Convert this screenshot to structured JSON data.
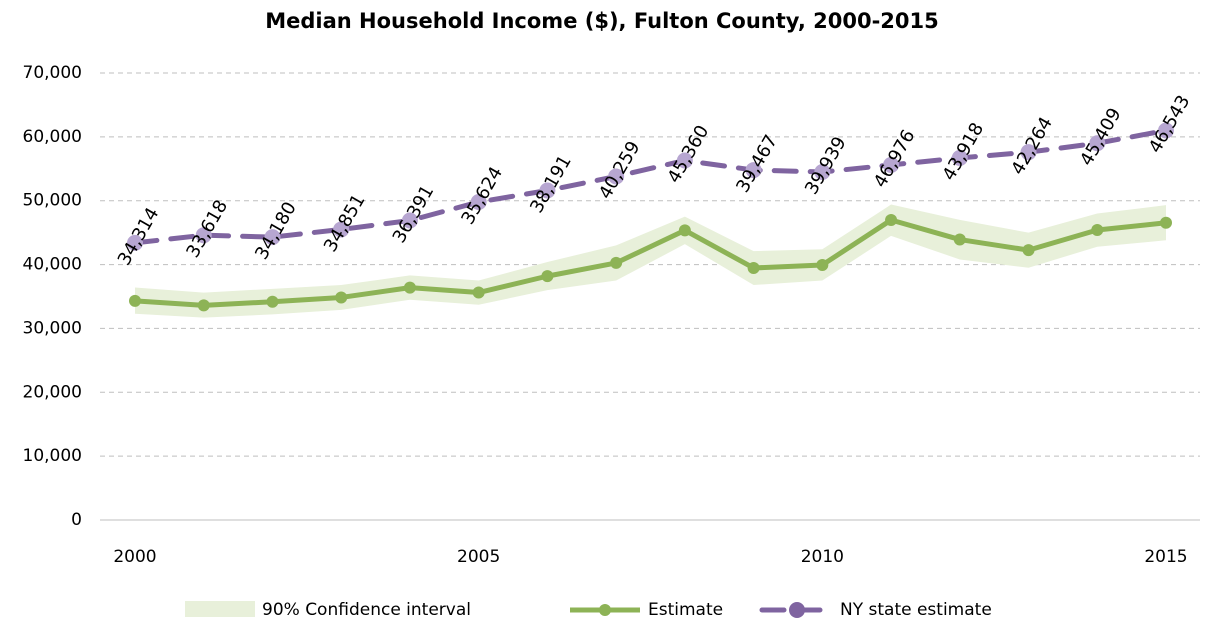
{
  "chart_data": {
    "type": "line",
    "title": "Median Household Income ($), Fulton County, 2000-2015",
    "x": [
      2000,
      2001,
      2002,
      2003,
      2004,
      2005,
      2006,
      2007,
      2008,
      2009,
      2010,
      2011,
      2012,
      2013,
      2014,
      2015
    ],
    "xlim": [
      2000,
      2015
    ],
    "xticks": [
      2000,
      2005,
      2010,
      2015
    ],
    "ylim": [
      0,
      70000
    ],
    "yticks": [
      0,
      {
        "value": 10000,
        "label": "10,000"
      },
      {
        "value": 20000,
        "label": "20,000"
      },
      {
        "value": 30000,
        "label": "30,000"
      },
      {
        "value": 40000,
        "label": "40,000"
      },
      {
        "value": 50000,
        "label": "50,000"
      },
      {
        "value": 60000,
        "label": "60,000"
      },
      {
        "value": 70000,
        "label": "70,000"
      }
    ],
    "grid": true,
    "legend": "bottom",
    "band": {
      "name": "90% Confidence interval",
      "color": "#e8f0da",
      "low": [
        32300,
        31700,
        32200,
        32900,
        34500,
        33700,
        36000,
        37500,
        43200,
        36800,
        37500,
        44500,
        40800,
        39500,
        42800,
        43800
      ],
      "high": [
        36400,
        35600,
        36200,
        36800,
        38300,
        37500,
        40400,
        43000,
        47500,
        42100,
        42400,
        49400,
        47000,
        45000,
        48000,
        49300
      ]
    },
    "series": [
      {
        "name": "Estimate",
        "color": "#8db356",
        "values": [
          34314,
          33618,
          34180,
          34851,
          36391,
          35624,
          38191,
          40259,
          45360,
          39467,
          39939,
          46976,
          43918,
          42264,
          45409,
          46543
        ],
        "value_labels": [
          "34,314",
          "33,618",
          "34,180",
          "34,851",
          "36,391",
          "35,624",
          "38,191",
          "40,259",
          "45,360",
          "39,467",
          "39,939",
          "46,976",
          "43,918",
          "42,264",
          "45,409",
          "46,543"
        ]
      },
      {
        "name": "NY state estimate",
        "color": "#7f64a0",
        "marker_color": "#b7a6d1",
        "dashed": true,
        "values": [
          43400,
          44600,
          44300,
          45500,
          46900,
          49800,
          51600,
          53800,
          56300,
          54800,
          54500,
          55600,
          56700,
          57600,
          59000,
          61000
        ]
      }
    ]
  }
}
